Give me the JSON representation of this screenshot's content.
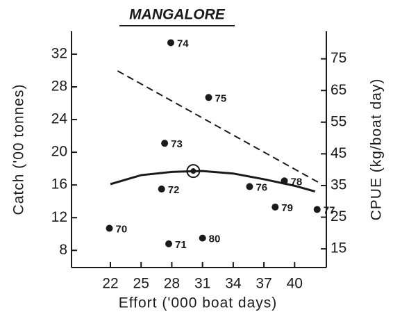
{
  "chart_data": {
    "type": "scatter",
    "title": "MANGALORE",
    "xlabel": "Effort ('000 boat days)",
    "ylabel": "Catch ('00 tonnes)",
    "y2label": "CPUE (kg/boat day)",
    "xlim": [
      18.2,
      43.1
    ],
    "xticks": [
      22,
      25,
      28,
      31,
      34,
      37,
      40
    ],
    "ylim": [
      5.9,
      34.8
    ],
    "yticks": [
      8,
      12,
      16,
      20,
      24,
      28,
      32
    ],
    "y2lim": [
      9.1,
      83.7
    ],
    "y2ticks": [
      15,
      25,
      35,
      45,
      55,
      65,
      75
    ],
    "points": {
      "color": "#1a1a1a",
      "labels": [
        "70",
        "71",
        "72",
        "73",
        "74",
        "75",
        "76",
        "77",
        "78",
        "79",
        "80"
      ],
      "x": [
        21.9,
        27.7,
        27.0,
        27.3,
        27.9,
        31.6,
        35.6,
        42.2,
        39.0,
        38.1,
        31.0
      ],
      "values": [
        10.7,
        8.8,
        15.5,
        21.1,
        33.4,
        26.7,
        15.8,
        13.0,
        16.5,
        13.3,
        9.5
      ]
    },
    "optimum": {
      "x": 30.1,
      "value": 17.7
    },
    "catch_curve": {
      "color": "#1a1a1a",
      "x": [
        22,
        25,
        28,
        31,
        34,
        37,
        40,
        42
      ],
      "values": [
        16.1,
        17.2,
        17.6,
        17.7,
        17.4,
        16.7,
        15.9,
        15.2
      ]
    },
    "cpue_line": {
      "color": "#1a1a1a",
      "axis": "y2",
      "dashed": true,
      "x": [
        22.7,
        42.6
      ],
      "values": [
        71.2,
        35.5
      ]
    }
  }
}
